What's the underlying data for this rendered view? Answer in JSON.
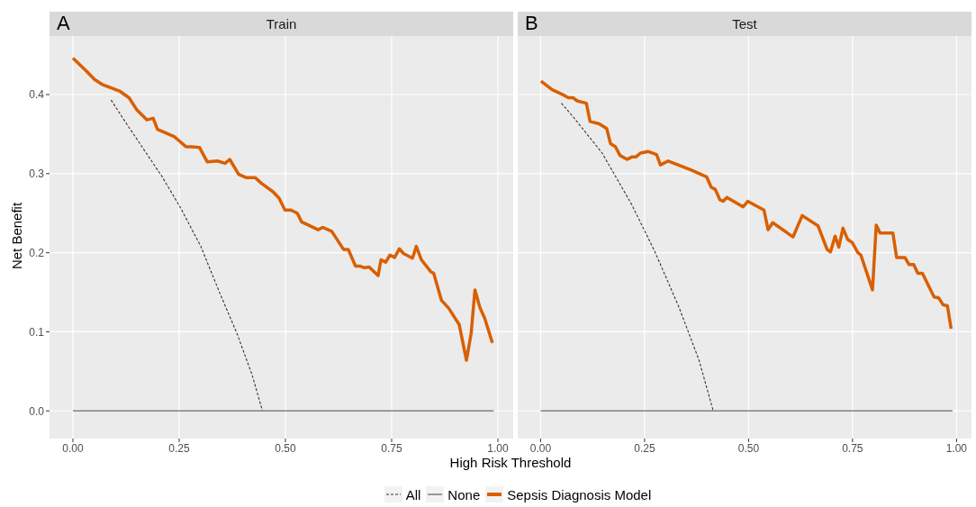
{
  "chart_data": [
    {
      "type": "line",
      "title": "A",
      "subtitle": "Train",
      "xlabel": "High Risk Threshold",
      "ylabel": "Net Benefit",
      "xlim": [
        -0.055,
        1.036
      ],
      "ylim": [
        -0.035,
        0.474
      ],
      "xticks": [
        {
          "value": 0,
          "label": "0.00"
        },
        {
          "value": 0.25,
          "label": "0.25"
        },
        {
          "value": 0.5,
          "label": "0.50"
        },
        {
          "value": 0.75,
          "label": "0.75"
        },
        {
          "value": 1,
          "label": "1.00"
        }
      ],
      "yticks": [
        {
          "value": 0,
          "label": "0.0"
        },
        {
          "value": 0.1,
          "label": "0.1"
        },
        {
          "value": 0.2,
          "label": "0.2"
        },
        {
          "value": 0.3,
          "label": "0.3"
        },
        {
          "value": 0.4,
          "label": "0.4"
        }
      ],
      "grid": true,
      "legend": "bottom",
      "series": [
        {
          "name": "All",
          "color": "#333333",
          "line_style": "dashed",
          "x": [
            0.09,
            0.125,
            0.21,
            0.252,
            0.301,
            0.344,
            0.386,
            0.422,
            0.446
          ],
          "values": [
            0.393,
            0.364,
            0.296,
            0.258,
            0.208,
            0.151,
            0.098,
            0.045,
            0
          ]
        },
        {
          "name": "None",
          "color": "#808080",
          "line_style": "solid",
          "x": [
            0,
            0.99
          ],
          "values": [
            0,
            0
          ]
        },
        {
          "name": "Sepsis Diagnosis Model",
          "color": "#d95f02",
          "line_style": "solid",
          "x": [
            0,
            0.033,
            0.051,
            0.068,
            0.111,
            0.132,
            0.15,
            0.174,
            0.189,
            0.199,
            0.238,
            0.266,
            0.28,
            0.298,
            0.316,
            0.34,
            0.358,
            0.369,
            0.39,
            0.407,
            0.429,
            0.443,
            0.471,
            0.485,
            0.499,
            0.513,
            0.528,
            0.538,
            0.577,
            0.588,
            0.609,
            0.637,
            0.648,
            0.665,
            0.676,
            0.686,
            0.697,
            0.718,
            0.725,
            0.736,
            0.746,
            0.757,
            0.768,
            0.778,
            0.799,
            0.808,
            0.82,
            0.842,
            0.849,
            0.867,
            0.884,
            0.909,
            0.926,
            0.937,
            0.946,
            0.958,
            0.969,
            0.987
          ],
          "values": [
            0.446,
            0.429,
            0.419,
            0.413,
            0.404,
            0.396,
            0.381,
            0.368,
            0.37,
            0.356,
            0.347,
            0.334,
            0.334,
            0.333,
            0.315,
            0.316,
            0.313,
            0.318,
            0.299,
            0.295,
            0.295,
            0.288,
            0.277,
            0.269,
            0.254,
            0.254,
            0.25,
            0.239,
            0.229,
            0.232,
            0.227,
            0.204,
            0.204,
            0.183,
            0.183,
            0.181,
            0.182,
            0.171,
            0.191,
            0.188,
            0.197,
            0.194,
            0.205,
            0.199,
            0.193,
            0.208,
            0.191,
            0.176,
            0.174,
            0.14,
            0.13,
            0.109,
            0.064,
            0.098,
            0.153,
            0.13,
            0.117,
            0.086
          ]
        }
      ]
    },
    {
      "type": "line",
      "title": "B",
      "subtitle": "Test",
      "xlim": [
        -0.055,
        1.036
      ],
      "ylim": [
        -0.035,
        0.474
      ],
      "tick_labels": "x",
      "xticks": [
        {
          "value": 0,
          "label": "0.00"
        },
        {
          "value": 0.25,
          "label": "0.25"
        },
        {
          "value": 0.5,
          "label": "0.50"
        },
        {
          "value": 0.75,
          "label": "0.75"
        },
        {
          "value": 1,
          "label": "1.00"
        }
      ],
      "yticks": [
        0,
        0.1,
        0.2,
        0.3,
        0.4
      ],
      "grid": true,
      "series": [
        {
          "color": "#333333",
          "line_style": "dashed",
          "x": [
            0.05,
            0.078,
            0.148,
            0.219,
            0.275,
            0.332,
            0.381,
            0.415
          ],
          "values": [
            0.389,
            0.372,
            0.326,
            0.261,
            0.201,
            0.132,
            0.064,
            0
          ]
        },
        {
          "color": "#808080",
          "line_style": "solid",
          "x": [
            0,
            0.99
          ],
          "values": [
            0,
            0
          ]
        },
        {
          "color": "#d95f02",
          "line_style": "solid",
          "x": [
            0.001,
            0.028,
            0.049,
            0.067,
            0.078,
            0.088,
            0.11,
            0.119,
            0.141,
            0.159,
            0.168,
            0.18,
            0.191,
            0.208,
            0.219,
            0.229,
            0.24,
            0.258,
            0.279,
            0.288,
            0.307,
            0.36,
            0.399,
            0.41,
            0.42,
            0.431,
            0.439,
            0.448,
            0.487,
            0.498,
            0.537,
            0.547,
            0.558,
            0.607,
            0.629,
            0.667,
            0.689,
            0.697,
            0.708,
            0.717,
            0.727,
            0.738,
            0.749,
            0.763,
            0.77,
            0.798,
            0.807,
            0.816,
            0.847,
            0.856,
            0.876,
            0.886,
            0.897,
            0.907,
            0.918,
            0.946,
            0.957,
            0.968,
            0.978,
            0.987
          ],
          "values": [
            0.417,
            0.406,
            0.401,
            0.396,
            0.396,
            0.392,
            0.389,
            0.366,
            0.363,
            0.357,
            0.338,
            0.334,
            0.323,
            0.318,
            0.321,
            0.321,
            0.326,
            0.328,
            0.324,
            0.311,
            0.316,
            0.305,
            0.296,
            0.283,
            0.28,
            0.267,
            0.265,
            0.27,
            0.258,
            0.265,
            0.254,
            0.229,
            0.238,
            0.22,
            0.247,
            0.234,
            0.204,
            0.201,
            0.221,
            0.207,
            0.231,
            0.217,
            0.213,
            0.2,
            0.197,
            0.153,
            0.235,
            0.225,
            0.225,
            0.194,
            0.194,
            0.185,
            0.185,
            0.174,
            0.174,
            0.144,
            0.143,
            0.134,
            0.133,
            0.104
          ]
        }
      ]
    }
  ]
}
